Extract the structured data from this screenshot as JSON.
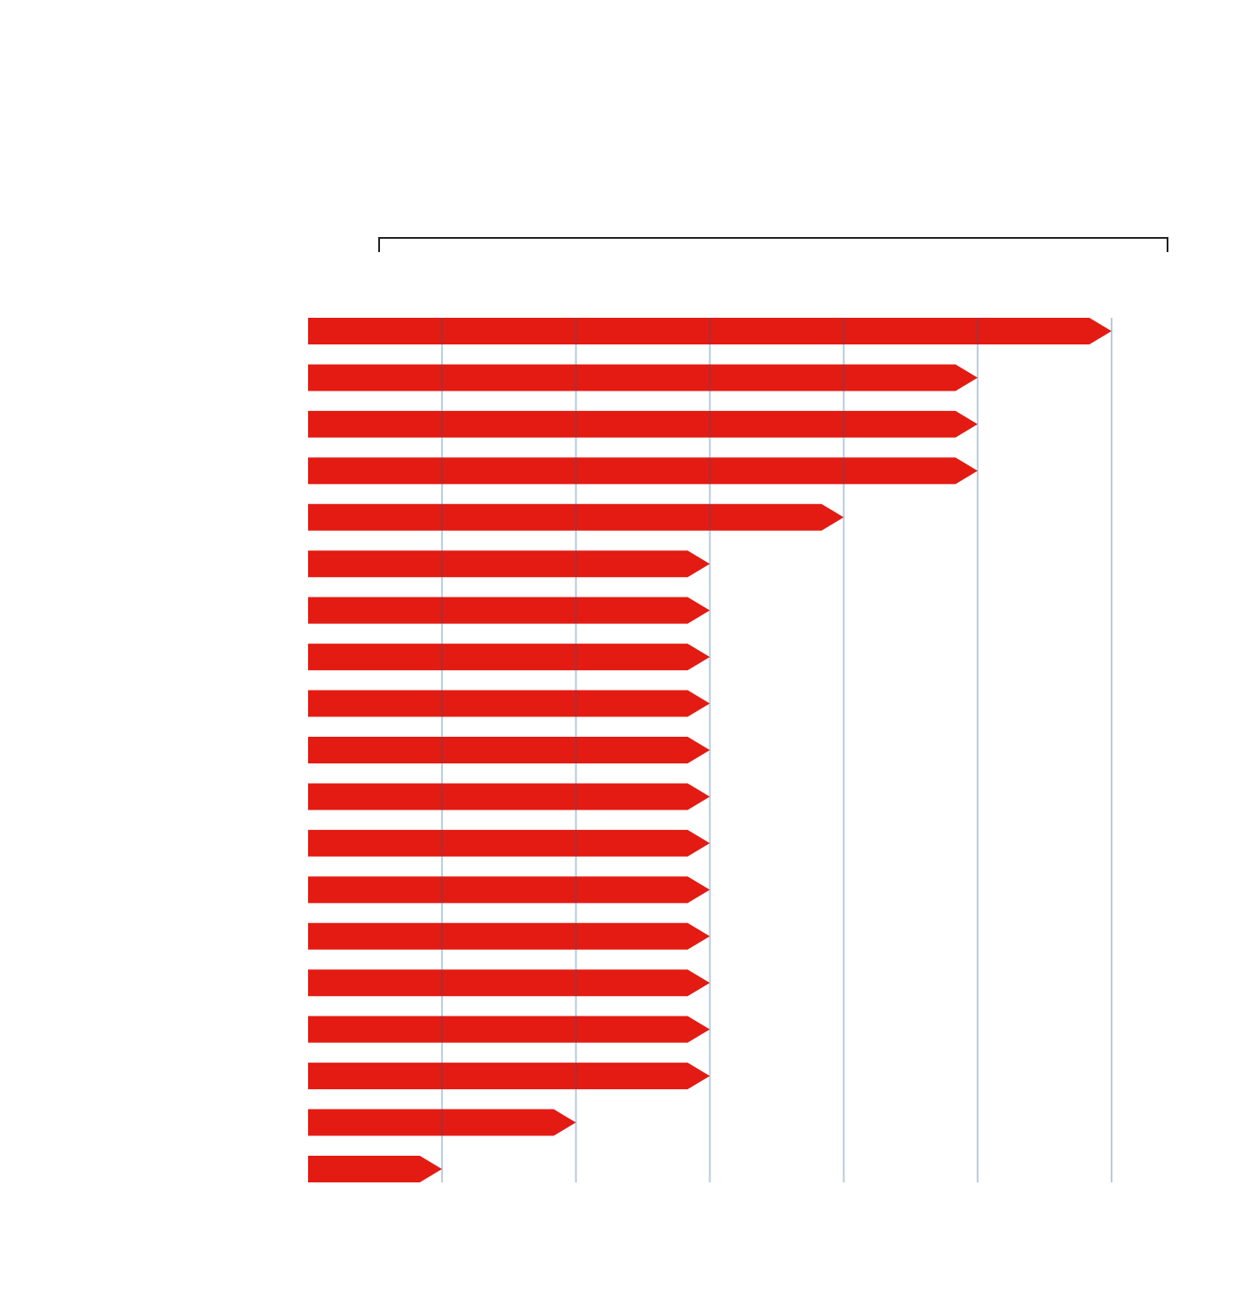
{
  "chart_data": {
    "type": "bar",
    "orientation": "horizontal",
    "categories": [
      null,
      null,
      null,
      null,
      null,
      null,
      null,
      null,
      null,
      null,
      null,
      null,
      null,
      null,
      null,
      null,
      null,
      null,
      null
    ],
    "values": [
      6,
      5,
      5,
      5,
      4,
      3,
      3,
      3,
      3,
      3,
      3,
      3,
      3,
      3,
      3,
      3,
      3,
      2,
      1
    ],
    "color": "#e31b13",
    "xlim": [
      0,
      6
    ],
    "xticks": [
      1,
      2,
      3,
      4,
      5,
      6
    ],
    "grid": true
  }
}
